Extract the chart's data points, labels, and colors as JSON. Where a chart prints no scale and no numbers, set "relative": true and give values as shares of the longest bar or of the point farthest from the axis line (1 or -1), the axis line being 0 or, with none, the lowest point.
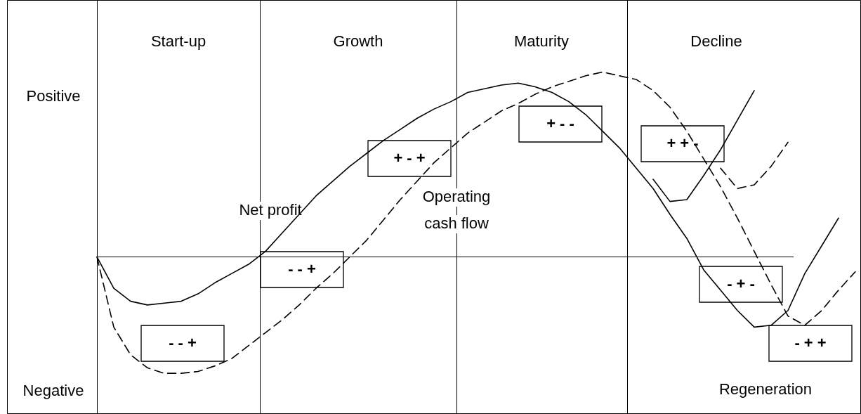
{
  "chart_data": {
    "type": "line",
    "relative": true,
    "legend": false,
    "marker": "none",
    "categories": [
      null,
      null,
      null,
      null,
      null,
      null,
      null,
      null,
      null,
      null,
      null,
      null,
      null,
      null,
      null,
      null,
      null,
      null,
      null,
      null,
      null,
      null,
      null,
      null,
      null,
      null,
      null,
      null,
      null,
      null,
      null,
      null,
      null,
      null,
      null,
      null,
      null,
      null,
      null,
      null,
      null,
      null,
      null,
      null,
      null,
      null
    ],
    "series": [
      {
        "name": "Net profit",
        "color": "#000000",
        "line_style": "solid",
        "values": [
          0,
          -0.17,
          -0.24,
          -0.26,
          -0.25,
          -0.24,
          -0.2,
          -0.14,
          -0.09,
          -0.04,
          0.03,
          0.13,
          0.23,
          0.33,
          0.41,
          0.49,
          0.56,
          0.63,
          0.69,
          0.75,
          0.8,
          0.84,
          0.89,
          0.91,
          0.93,
          0.94,
          0.92,
          0.89,
          0.84,
          0.77,
          0.68,
          0.59,
          0.48,
          0.37,
          0.23,
          0.1,
          -0.07,
          -0.18,
          -0.29,
          -0.38,
          -0.37,
          -0.29,
          -0.09,
          0.06,
          0.21,
          null
        ]
      },
      {
        "name": "Operating cash flow",
        "color": "#000000",
        "line_style": "dashed",
        "values": [
          0,
          -0.38,
          -0.53,
          -0.6,
          -0.63,
          -0.63,
          -0.62,
          -0.59,
          -0.55,
          -0.48,
          -0.41,
          -0.34,
          -0.26,
          -0.17,
          -0.09,
          0,
          0.09,
          0.2,
          0.31,
          0.41,
          0.51,
          0.59,
          0.67,
          0.73,
          0.79,
          0.83,
          0.88,
          0.92,
          0.95,
          0.98,
          1,
          0.98,
          0.96,
          0.9,
          0.81,
          0.68,
          0.53,
          0.38,
          0.21,
          0.03,
          -0.15,
          -0.32,
          -0.37,
          -0.29,
          -0.18,
          -0.08
        ]
      },
      {
        "color": "#000000",
        "line_style": "solid",
        "values": [
          null,
          null,
          null,
          null,
          null,
          null,
          null,
          null,
          null,
          null,
          null,
          null,
          null,
          null,
          null,
          null,
          null,
          null,
          null,
          null,
          null,
          null,
          null,
          null,
          null,
          null,
          null,
          null,
          null,
          null,
          null,
          null,
          null,
          0.42,
          0.3,
          0.31,
          0.44,
          0.58,
          0.74,
          0.9,
          null,
          null,
          null,
          null,
          null,
          null
        ]
      },
      {
        "color": "#000000",
        "line_style": "dashed",
        "values": [
          null,
          null,
          null,
          null,
          null,
          null,
          null,
          null,
          null,
          null,
          null,
          null,
          null,
          null,
          null,
          null,
          null,
          null,
          null,
          null,
          null,
          null,
          null,
          null,
          null,
          null,
          null,
          null,
          null,
          null,
          null,
          null,
          null,
          null,
          null,
          null,
          null,
          0.48,
          0.37,
          0.39,
          0.49,
          0.62,
          null,
          null,
          null,
          null
        ]
      }
    ],
    "annotations": [
      "Start-up",
      "Growth",
      "Maturity",
      "Decline",
      "Positive",
      "Negative",
      "- - +",
      "- - +",
      "+ - +",
      "+ - -",
      "+ + -",
      "- + -",
      "- + +",
      "Regeneration"
    ]
  }
}
